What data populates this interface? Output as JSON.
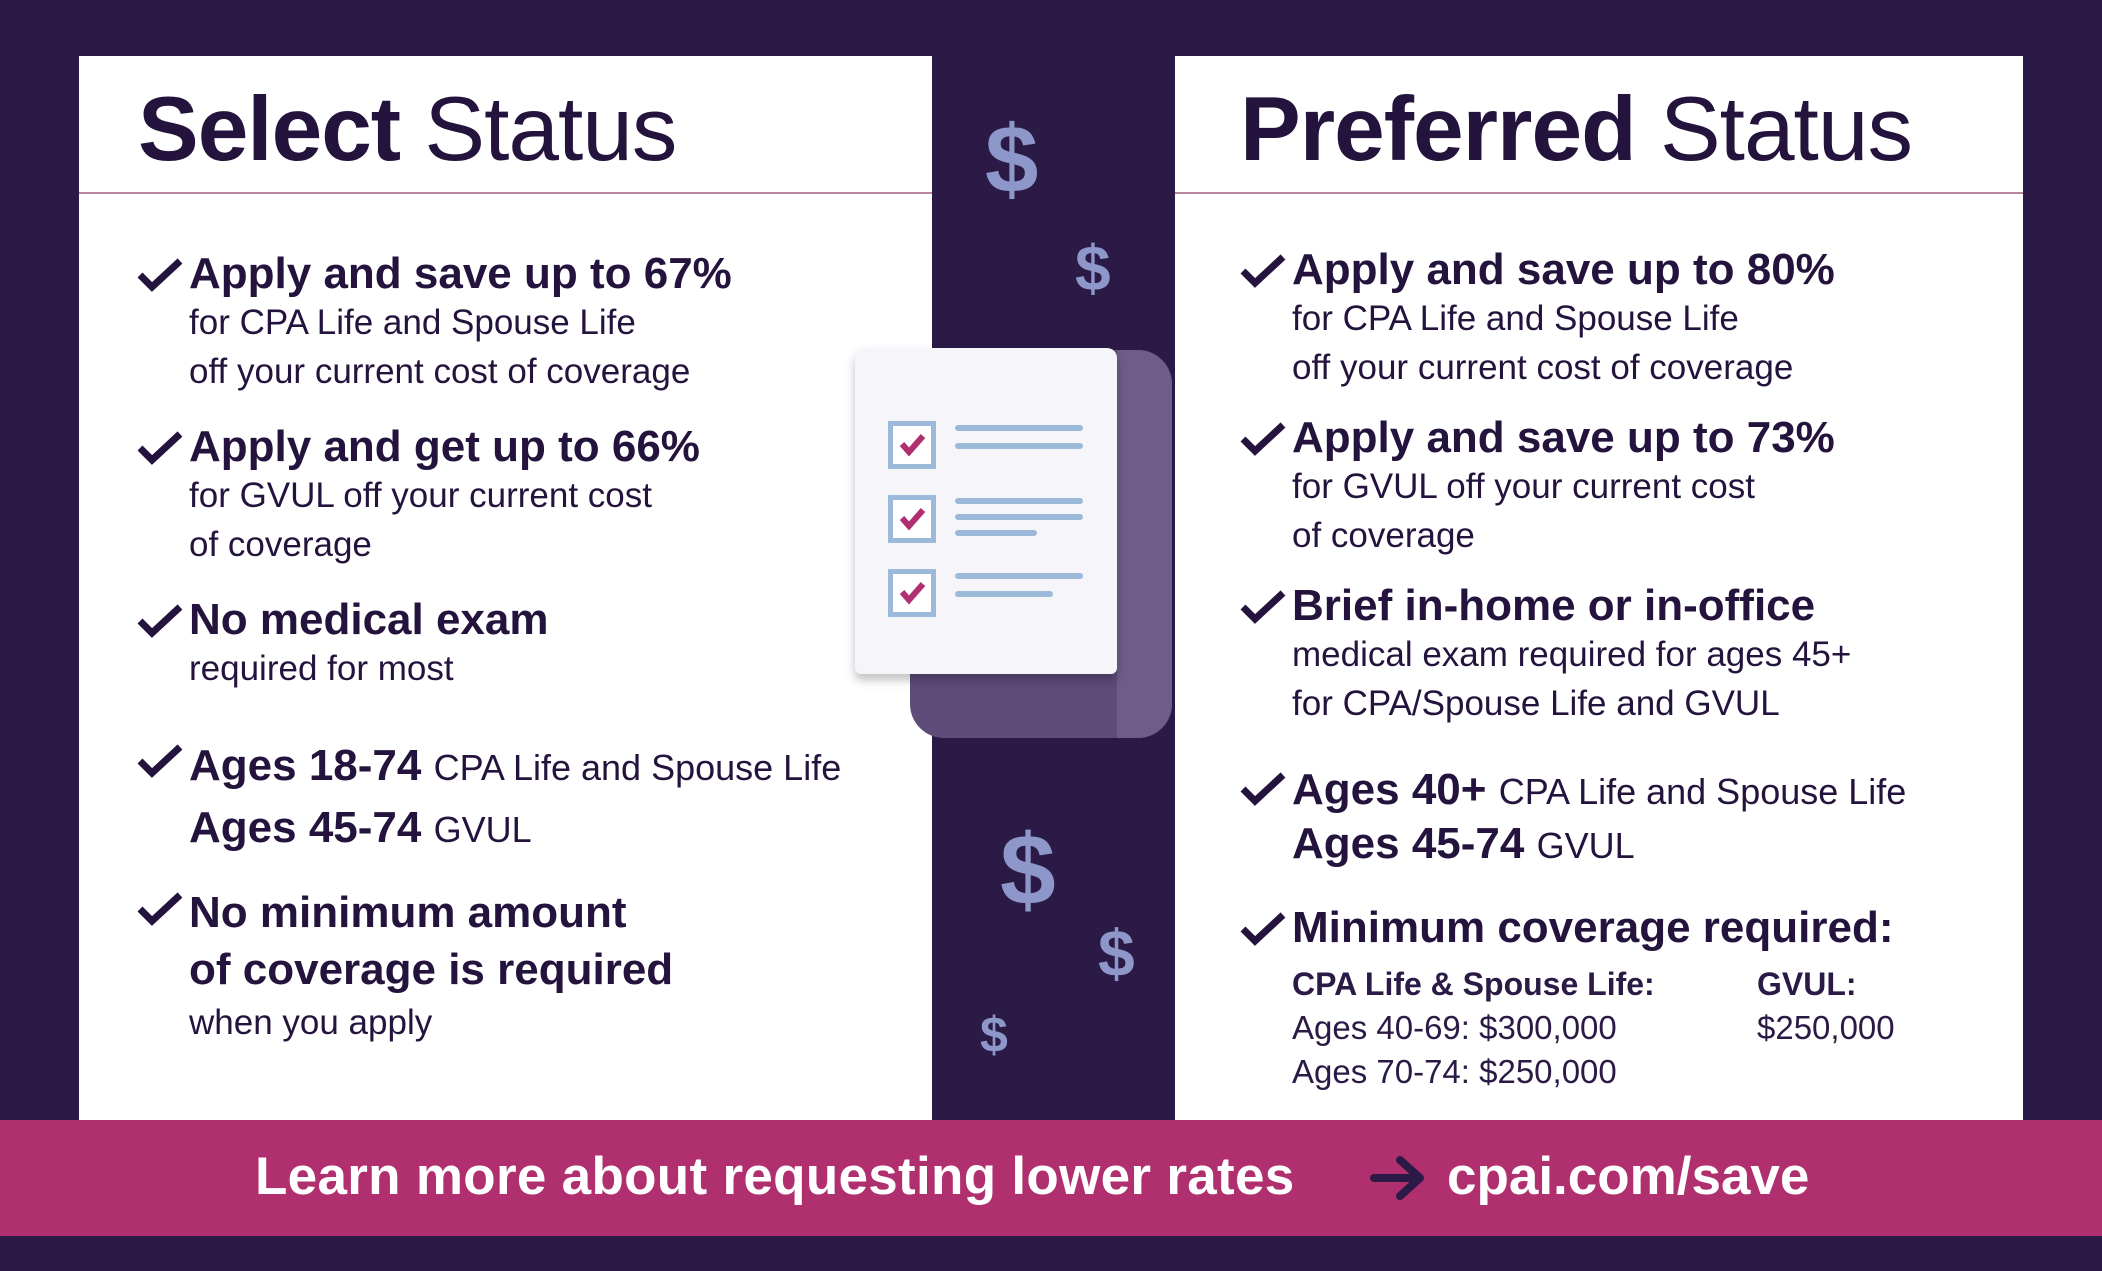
{
  "select": {
    "title_strong": "Select",
    "title_light": "Status",
    "items": [
      {
        "head": "Apply and save up to 67%",
        "lines": [
          "for CPA Life and Spouse Life",
          "off your current cost of coverage"
        ]
      },
      {
        "head": "Apply and get up to 66%",
        "lines": [
          "for GVUL off your current cost",
          "of coverage"
        ]
      },
      {
        "head": "No medical exam",
        "lines": [
          "required for most"
        ]
      },
      {
        "head": "Ages 18-74",
        "head_suffix": "CPA Life and Spouse Life",
        "head2": "Ages 45-74",
        "head2_suffix": "GVUL"
      },
      {
        "head": "No minimum amount",
        "head2": "of coverage is required",
        "lines": [
          "when you apply"
        ]
      }
    ]
  },
  "preferred": {
    "title_strong": "Preferred",
    "title_light": "Status",
    "items": [
      {
        "head": "Apply and save up to 80%",
        "lines": [
          "for CPA Life and Spouse Life",
          "off your current cost of coverage"
        ]
      },
      {
        "head": "Apply and save up to 73%",
        "lines": [
          "for GVUL off your current cost",
          "of coverage"
        ]
      },
      {
        "head": "Brief in-home or in-office",
        "lines": [
          "medical exam required for ages 45+",
          "for CPA/Spouse Life and GVUL"
        ]
      },
      {
        "head": "Ages 40+",
        "head_suffix": "CPA Life and Spouse Life",
        "head2": "Ages 45-74",
        "head2_suffix": "GVUL"
      },
      {
        "head": "Minimum coverage required:"
      }
    ],
    "coverage": {
      "col1_head": "CPA Life & Spouse Life:",
      "col1_lines": [
        "Ages 40-69: $300,000",
        "Ages 70-74: $250,000"
      ],
      "col2_head": "GVUL:",
      "col2_lines": [
        "$250,000"
      ]
    }
  },
  "decor": {
    "dollar_symbol": "$"
  },
  "banner": {
    "text": "Learn more about requesting lower rates",
    "url": "cpai.com/save"
  },
  "colors": {
    "background": "#2b1a45",
    "banner": "#b0306f",
    "accent_check": "#b0306f",
    "doc_line": "#9db9d9",
    "dollar": "#8d97c9"
  }
}
